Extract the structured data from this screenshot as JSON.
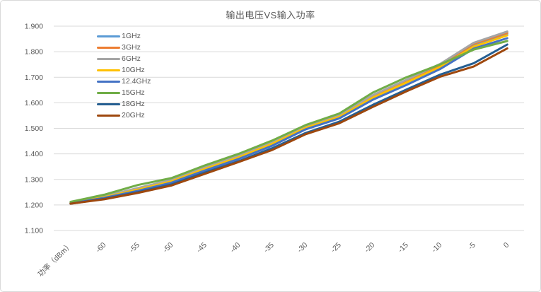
{
  "frame": {
    "background": "#ffffff",
    "border_color": "#d9d9d9",
    "grid_color": "#d9d9d9",
    "text_color": "#595959"
  },
  "chart_data": {
    "type": "line",
    "title": "输出电压VS输入功率",
    "xlabel": "功率（dBm）",
    "ylabel": "",
    "grid": true,
    "legend_position": "inside-top-left",
    "ylim": [
      1.1,
      1.9
    ],
    "y_ticks": [
      "1.900",
      "1.800",
      "1.700",
      "1.600",
      "1.500",
      "1.400",
      "1.300",
      "1.200",
      "1.100"
    ],
    "categories": [
      "功率（dBm）",
      "-60",
      "-55",
      "-50",
      "-45",
      "-40",
      "-35",
      "-30",
      "-25",
      "-20",
      "-15",
      "-10",
      "-5",
      "0"
    ],
    "series": [
      {
        "name": "1GHz",
        "color": "#5B9BD5",
        "values": [
          1.208,
          1.232,
          1.262,
          1.294,
          1.344,
          1.389,
          1.442,
          1.504,
          1.548,
          1.624,
          1.684,
          1.745,
          1.827,
          1.87
        ]
      },
      {
        "name": "3GHz",
        "color": "#ED7D31",
        "values": [
          1.208,
          1.233,
          1.264,
          1.296,
          1.346,
          1.391,
          1.444,
          1.506,
          1.55,
          1.627,
          1.687,
          1.748,
          1.831,
          1.874
        ]
      },
      {
        "name": "6GHz",
        "color": "#A5A5A5",
        "values": [
          1.209,
          1.234,
          1.266,
          1.298,
          1.348,
          1.393,
          1.446,
          1.508,
          1.552,
          1.63,
          1.69,
          1.752,
          1.835,
          1.879
        ]
      },
      {
        "name": "10GHz",
        "color": "#FFC000",
        "values": [
          1.207,
          1.23,
          1.26,
          1.292,
          1.341,
          1.386,
          1.439,
          1.502,
          1.545,
          1.62,
          1.679,
          1.74,
          1.82,
          1.864
        ]
      },
      {
        "name": "12.4GHz",
        "color": "#4472C4",
        "values": [
          1.206,
          1.228,
          1.255,
          1.287,
          1.335,
          1.38,
          1.432,
          1.496,
          1.539,
          1.612,
          1.67,
          1.732,
          1.812,
          1.853
        ]
      },
      {
        "name": "15GHz",
        "color": "#70AD47",
        "values": [
          1.212,
          1.24,
          1.278,
          1.305,
          1.355,
          1.4,
          1.452,
          1.513,
          1.558,
          1.64,
          1.7,
          1.75,
          1.808,
          1.842
        ]
      },
      {
        "name": "18GHz",
        "color": "#255E91",
        "values": [
          1.205,
          1.224,
          1.25,
          1.28,
          1.327,
          1.371,
          1.422,
          1.482,
          1.526,
          1.592,
          1.652,
          1.71,
          1.755,
          1.828
        ]
      },
      {
        "name": "20GHz",
        "color": "#9E480E",
        "values": [
          1.205,
          1.222,
          1.247,
          1.276,
          1.322,
          1.368,
          1.415,
          1.477,
          1.52,
          1.584,
          1.645,
          1.702,
          1.742,
          1.813
        ]
      }
    ]
  }
}
